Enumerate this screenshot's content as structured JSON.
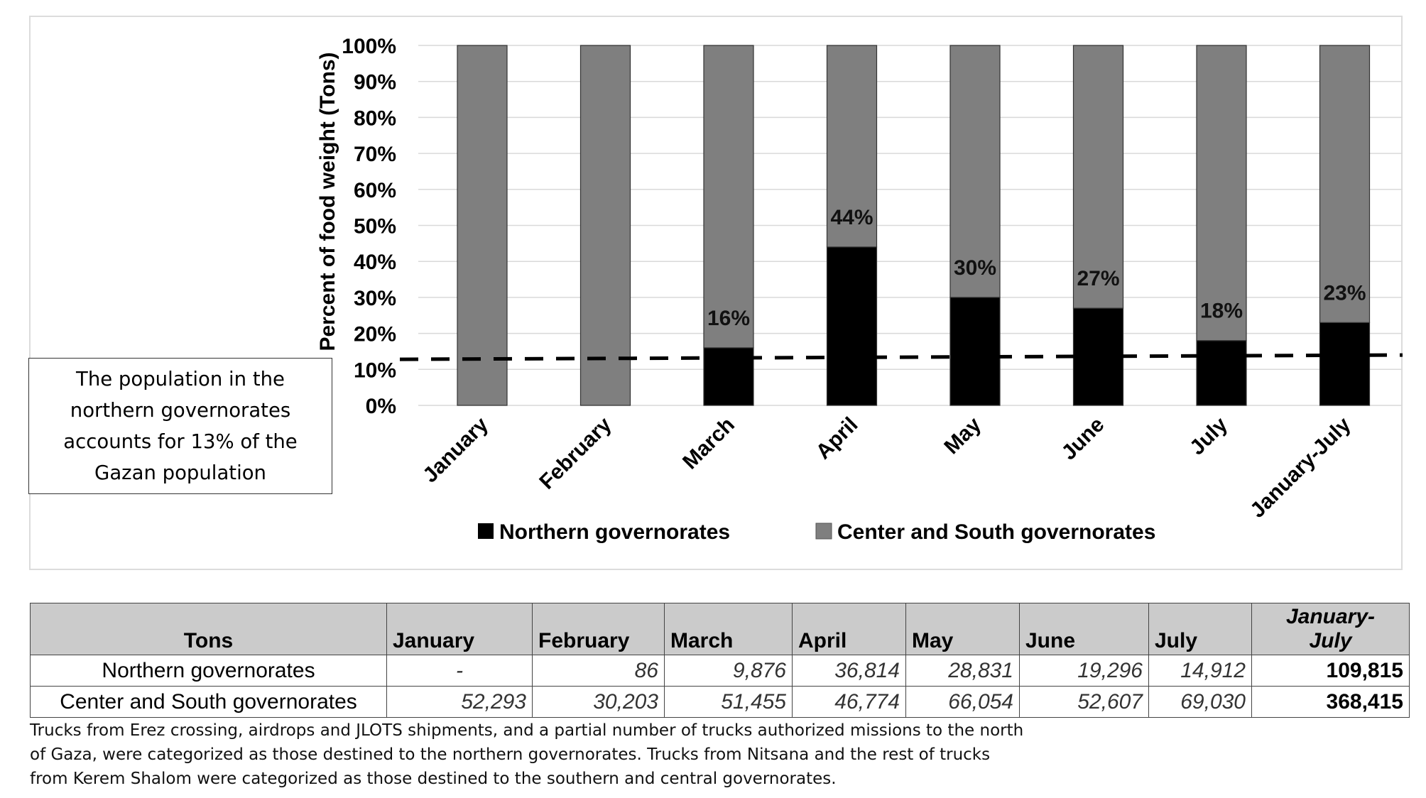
{
  "chart_data": {
    "type": "bar",
    "stacked": true,
    "categories": [
      "January",
      "February",
      "March",
      "April",
      "May",
      "June",
      "July",
      "January-July"
    ],
    "series": [
      {
        "name": "Northern governorates",
        "color": "#000000",
        "values": [
          0,
          0,
          16,
          44,
          30,
          27,
          18,
          23
        ]
      },
      {
        "name": "Center and South governorates",
        "color": "#7f7f7f",
        "values": [
          100,
          100,
          84,
          56,
          70,
          73,
          82,
          77
        ]
      }
    ],
    "data_labels": [
      "",
      "",
      "16%",
      "44%",
      "30%",
      "27%",
      "18%",
      "23%"
    ],
    "ylabel": "Percent of food weight (Tons)",
    "yticks": [
      "0%",
      "10%",
      "20%",
      "30%",
      "40%",
      "50%",
      "60%",
      "70%",
      "80%",
      "90%",
      "100%"
    ],
    "ylim": [
      0,
      100
    ],
    "reference_line": {
      "value": 13,
      "style": "dashed"
    },
    "grid": true,
    "legend_position": "bottom"
  },
  "note": {
    "lines": [
      "The population in the",
      "northern governorates",
      "accounts for 13% of the",
      "Gazan population"
    ]
  },
  "table": {
    "header": [
      "Tons",
      "January",
      "February",
      "March",
      "April",
      "May",
      "June",
      "July"
    ],
    "total_header": [
      "January-",
      "July"
    ],
    "rows": [
      {
        "label": "Northern governorates",
        "cells": [
          "-",
          "86",
          "9,876",
          "36,814",
          "28,831",
          "19,296",
          "14,912"
        ],
        "total": "109,815"
      },
      {
        "label": "Center and South governorates",
        "cells": [
          "52,293",
          "30,203",
          "51,455",
          "46,774",
          "66,054",
          "52,607",
          "69,030"
        ],
        "total": "368,415"
      }
    ]
  },
  "footnote": {
    "lines": [
      "Trucks from Erez crossing, airdrops and JLOTS shipments, and a partial number of trucks authorized missions to the north",
      "of Gaza, were categorized as those destined to the northern governorates. Trucks from Nitsana and the rest of trucks",
      "from Kerem Shalom were categorized as those destined to the southern and central governorates."
    ]
  }
}
